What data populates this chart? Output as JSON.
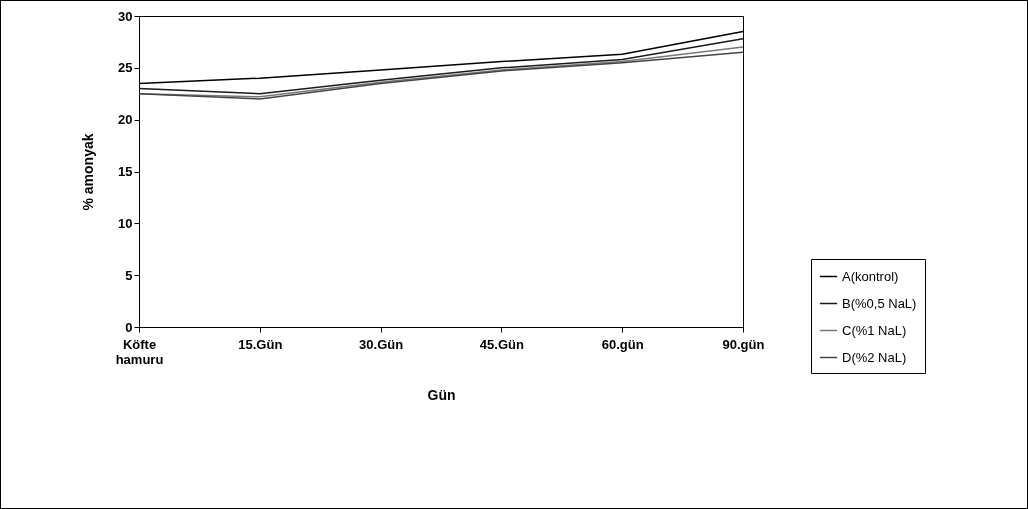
{
  "chart_data": {
    "type": "line",
    "xlabel": "Gün",
    "ylabel": "% amonyak",
    "categories": [
      "Köfte hamuru",
      "15.Gün",
      "30.Gün",
      "45.Gün",
      "60.gün",
      "90.gün"
    ],
    "series": [
      {
        "name": "A(kontrol)",
        "color": "#000000",
        "values": [
          23.5,
          24.0,
          24.8,
          25.6,
          26.3,
          28.5
        ]
      },
      {
        "name": "B(%0,5 NaL)",
        "color": "#1a1a1a",
        "values": [
          23.0,
          22.5,
          23.8,
          25.0,
          25.8,
          27.8
        ]
      },
      {
        "name": "C(%1 NaL)",
        "color": "#777777",
        "values": [
          22.5,
          22.2,
          23.6,
          24.8,
          25.6,
          27.0
        ]
      },
      {
        "name": "D(%2 NaL)",
        "color": "#444444",
        "values": [
          22.5,
          22.0,
          23.5,
          24.7,
          25.5,
          26.5
        ]
      }
    ],
    "ylim": [
      0,
      30
    ],
    "yticks": [
      0,
      5,
      10,
      15,
      20,
      25,
      30
    ],
    "grid": false,
    "legend": "right",
    "marker": "none",
    "line_style": "solid"
  }
}
